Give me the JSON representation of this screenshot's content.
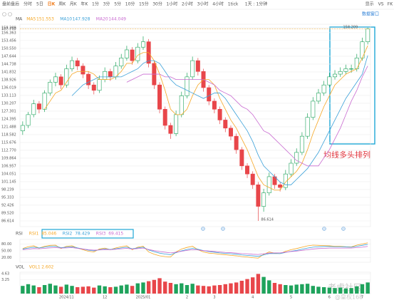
{
  "toolbar": {
    "items": [
      "盘前盘后",
      "分时",
      "5日",
      "日K",
      "周K",
      "月K",
      "年K",
      "1分",
      "3分",
      "5分",
      "10分",
      "15分",
      "30分",
      "1小时",
      "2小时",
      "3小时",
      "4小时",
      "1tick",
      "1天 : 1分钟"
    ],
    "right": [
      "显示",
      "VS",
      "FK"
    ],
    "data_window": "数据窗口"
  },
  "watermark": {
    "brand": "老虎社区",
    "user": "@皇权168"
  },
  "chart_data": [
    {
      "type": "candlestick",
      "title": "MA",
      "annotation": "均线多头排列",
      "up_color": "#1fa35c",
      "down_color": "#e8464a",
      "current_price_color": "#f5a623",
      "categories": [
        null,
        null,
        null,
        null,
        null,
        null,
        null,
        null,
        "2024/11",
        null,
        null,
        null,
        null,
        null,
        null,
        "12",
        null,
        null,
        null,
        null,
        null,
        null,
        "2025/01",
        null,
        null,
        null,
        null,
        null,
        null,
        null,
        "2",
        null,
        null,
        null,
        null,
        "3",
        null,
        null,
        null,
        null,
        null,
        null,
        "4",
        null,
        null,
        null,
        null,
        null,
        null,
        "5",
        null,
        null,
        null,
        null,
        null,
        null,
        "6",
        null,
        null,
        null,
        null,
        null,
        "7",
        null
      ],
      "ohlc": [
        [
          120,
          123.5,
          118.5,
          122
        ],
        [
          122,
          127,
          121,
          126
        ],
        [
          126,
          131.5,
          125,
          130
        ],
        [
          130,
          131,
          126.5,
          128
        ],
        [
          128,
          135,
          127,
          134
        ],
        [
          134,
          139,
          133,
          138
        ],
        [
          138,
          141.5,
          136.5,
          140
        ],
        [
          140,
          141,
          135.5,
          137
        ],
        [
          137,
          144.5,
          136,
          143
        ],
        [
          143,
          147.5,
          142,
          146
        ],
        [
          146,
          147,
          142.5,
          144
        ],
        [
          144,
          145,
          139.5,
          141
        ],
        [
          141,
          142,
          135.5,
          137
        ],
        [
          137,
          138,
          133.5,
          135
        ],
        [
          135,
          140.5,
          134,
          139
        ],
        [
          139,
          143.5,
          138,
          142
        ],
        [
          142,
          143,
          138.5,
          140
        ],
        [
          140,
          145.5,
          139,
          144
        ],
        [
          144,
          148.5,
          143,
          147
        ],
        [
          147,
          151.5,
          146,
          150
        ],
        [
          150,
          151,
          144.5,
          146
        ],
        [
          146,
          152.5,
          145,
          151
        ],
        [
          151,
          155,
          150,
          153
        ],
        [
          153,
          154,
          143.5,
          145
        ],
        [
          145,
          146,
          135.5,
          137
        ],
        [
          137,
          138,
          126.5,
          128
        ],
        [
          128,
          129,
          120.5,
          122
        ],
        [
          122,
          123,
          117,
          119
        ],
        [
          119,
          127.5,
          118,
          126
        ],
        [
          126,
          134.5,
          125,
          133
        ],
        [
          133,
          141.5,
          132,
          140
        ],
        [
          140,
          147.5,
          139,
          146
        ],
        [
          146,
          147,
          140.5,
          142
        ],
        [
          142,
          143,
          134.5,
          136
        ],
        [
          136,
          137,
          129.5,
          131
        ],
        [
          131,
          132,
          126.5,
          128
        ],
        [
          128,
          129,
          122.5,
          124
        ],
        [
          124,
          125,
          119.5,
          121
        ],
        [
          121,
          122,
          116.5,
          118
        ],
        [
          118,
          119,
          111.5,
          113
        ],
        [
          113,
          114,
          105.5,
          107
        ],
        [
          107,
          108,
          102.5,
          104
        ],
        [
          104,
          105,
          98.5,
          100
        ],
        [
          100,
          101,
          86.614,
          92
        ],
        [
          92,
          98.5,
          90,
          97
        ],
        [
          97,
          104.5,
          96,
          103
        ],
        [
          103,
          104,
          98.5,
          100
        ],
        [
          100,
          101,
          97.5,
          99
        ],
        [
          99,
          105.5,
          98,
          104
        ],
        [
          104,
          109.5,
          103,
          108
        ],
        [
          108,
          113.5,
          107,
          112
        ],
        [
          112,
          119.5,
          111,
          118
        ],
        [
          118,
          126.5,
          117,
          125
        ],
        [
          125,
          132.5,
          124,
          131
        ],
        [
          131,
          135.5,
          130,
          134
        ],
        [
          134,
          138.5,
          133,
          137
        ],
        [
          137,
          141.5,
          136,
          140
        ],
        [
          140,
          142.5,
          139,
          141
        ],
        [
          141,
          143.5,
          140,
          142
        ],
        [
          142,
          144.5,
          141,
          143
        ],
        [
          143,
          144.5,
          141.5,
          143
        ],
        [
          143,
          148.5,
          142,
          147
        ],
        [
          147,
          154.5,
          146,
          153
        ],
        [
          153,
          158.209,
          152,
          157.75
        ]
      ],
      "series": [
        {
          "name": "MA5",
          "color": "#f5a623",
          "values": [
            null,
            null,
            null,
            null,
            128,
            131,
            134,
            135,
            138,
            141,
            142,
            142,
            142,
            141,
            139,
            139,
            139,
            140,
            142,
            145,
            145,
            148,
            149,
            149,
            146,
            141,
            135,
            128,
            126,
            126,
            128,
            133,
            137,
            139,
            139,
            137,
            132,
            128,
            124,
            121,
            117,
            113,
            108,
            103,
            100,
            99,
            98,
            98,
            101,
            103,
            105,
            108,
            113,
            119,
            124,
            129,
            133,
            137,
            139,
            141,
            142,
            143,
            147,
            151.553
          ]
        },
        {
          "name": "MA10",
          "color": "#3aa0d8",
          "values": [
            null,
            null,
            null,
            null,
            null,
            null,
            null,
            null,
            null,
            133,
            135,
            137,
            138,
            139,
            140,
            140,
            140,
            140,
            140,
            141,
            142,
            143,
            145,
            146,
            146,
            145,
            142,
            139,
            137,
            136,
            135,
            134,
            133,
            132,
            133,
            134,
            134,
            132,
            129,
            126,
            123,
            120,
            116,
            111,
            107,
            105,
            103,
            101,
            100,
            100,
            102,
            104,
            106,
            109,
            112,
            116,
            120,
            124,
            128,
            132,
            135,
            138,
            141,
            147.928
          ]
        },
        {
          "name": "MA20",
          "color": "#c86ad0",
          "values": [
            null,
            null,
            null,
            null,
            null,
            null,
            null,
            null,
            null,
            null,
            null,
            null,
            null,
            null,
            null,
            null,
            null,
            null,
            null,
            138,
            139,
            140,
            141,
            141,
            141,
            141,
            140,
            140,
            139,
            139,
            139,
            139,
            139,
            139,
            138,
            137,
            135,
            134,
            133,
            131,
            129,
            128,
            126,
            123,
            120,
            119,
            117,
            115,
            113,
            111,
            109,
            108,
            107,
            107,
            107,
            110,
            113,
            117,
            121,
            126,
            131,
            135,
            140,
            144.049
          ]
        }
      ],
      "ylim": [
        84.5,
        159.5
      ],
      "yticks": [
        86.614,
        {
          "value": 89.52,
          "label": "89.520"
        },
        92.426,
        95.333,
        98.239,
        101.145,
        104.051,
        106.957,
        109.864,
        {
          "value": 112.77,
          "label": "112.770"
        },
        115.676,
        118.582,
        121.488,
        124.395,
        127.301,
        130.207,
        133.113,
        136.019,
        138.926,
        141.832,
        144.738,
        147.644,
        {
          "value": 150.55,
          "label": "150.550"
        },
        153.456,
        156.363,
        {
          "value": 157.75,
          "label": "157.750"
        },
        158.209
      ],
      "grid": true
    },
    {
      "type": "line",
      "title": "RSI",
      "series": [
        {
          "name": "RSI1",
          "color": "#f5a623",
          "values": [
            60,
            68,
            72,
            62,
            70,
            74,
            75,
            60,
            70,
            72,
            62,
            55,
            48,
            45,
            58,
            62,
            55,
            63,
            68,
            72,
            55,
            66,
            70,
            45,
            35,
            28,
            25,
            23,
            45,
            58,
            65,
            70,
            55,
            45,
            40,
            38,
            35,
            33,
            30,
            28,
            25,
            23,
            20,
            18,
            35,
            45,
            40,
            38,
            48,
            55,
            60,
            66,
            72,
            75,
            74,
            73,
            72,
            70,
            70,
            68,
            67,
            75,
            80,
            85.046
          ]
        },
        {
          "name": "RSI2",
          "color": "#3aa0d8",
          "values": [
            58,
            62,
            66,
            63,
            66,
            69,
            70,
            64,
            66,
            68,
            63,
            58,
            53,
            50,
            55,
            58,
            56,
            59,
            63,
            66,
            59,
            63,
            66,
            54,
            46,
            40,
            36,
            33,
            42,
            50,
            56,
            61,
            57,
            51,
            47,
            44,
            41,
            39,
            37,
            35,
            32,
            30,
            28,
            26,
            32,
            38,
            38,
            38,
            43,
            48,
            52,
            57,
            62,
            66,
            68,
            69,
            69,
            68,
            68,
            67,
            66,
            70,
            74,
            78.429
          ]
        },
        {
          "name": "RSI3",
          "color": "#c86ad0",
          "values": [
            55,
            57,
            60,
            59,
            61,
            63,
            64,
            62,
            63,
            64,
            61,
            58,
            55,
            53,
            54,
            56,
            55,
            57,
            59,
            61,
            58,
            60,
            62,
            56,
            51,
            47,
            44,
            41,
            44,
            48,
            52,
            55,
            54,
            51,
            49,
            47,
            45,
            43,
            42,
            40,
            38,
            37,
            35,
            34,
            37,
            40,
            41,
            41,
            44,
            47,
            49,
            52,
            55,
            58,
            60,
            61,
            62,
            62,
            62,
            62,
            62,
            64,
            66,
            69.415
          ]
        }
      ],
      "ylim": [
        0,
        100
      ],
      "yticks": [
        {
          "value": 20,
          "label": "20.00"
        },
        {
          "value": 50,
          "label": "50.00"
        },
        {
          "value": 80,
          "label": "80.00"
        }
      ],
      "grid": true
    },
    {
      "type": "bar",
      "title": "VOL",
      "series": [
        {
          "name": "VOL1",
          "color": "#f5a623",
          "values": [
            1.8,
            2.2,
            1.9,
            1.5,
            2.0,
            2.3,
            1.9,
            1.6,
            2.1,
            1.8,
            1.5,
            1.6,
            1.7,
            1.4,
            1.9,
            1.7,
            1.5,
            1.6,
            1.9,
            2.1,
            1.8,
            2.4,
            2.6,
            2.9,
            3.2,
            3.6,
            2.8,
            2.5,
            2.2,
            2.4,
            2.0,
            2.3,
            1.9,
            1.8,
            1.7,
            1.9,
            2.0,
            2.2,
            2.4,
            2.6,
            3.0,
            3.4,
            3.8,
            4.6,
            3.9,
            3.1,
            2.5,
            2.2,
            2.0,
            1.9,
            2.1,
            2.2,
            2.3,
            1.8,
            1.6,
            1.5,
            1.4,
            1.3,
            1.4,
            1.2,
            1.3,
            1.7,
            2.2,
            2.602
          ]
        }
      ],
      "ylim": [
        0,
        5
      ],
      "yticks": [
        3.25,
        4.63
      ],
      "grid": true
    }
  ]
}
